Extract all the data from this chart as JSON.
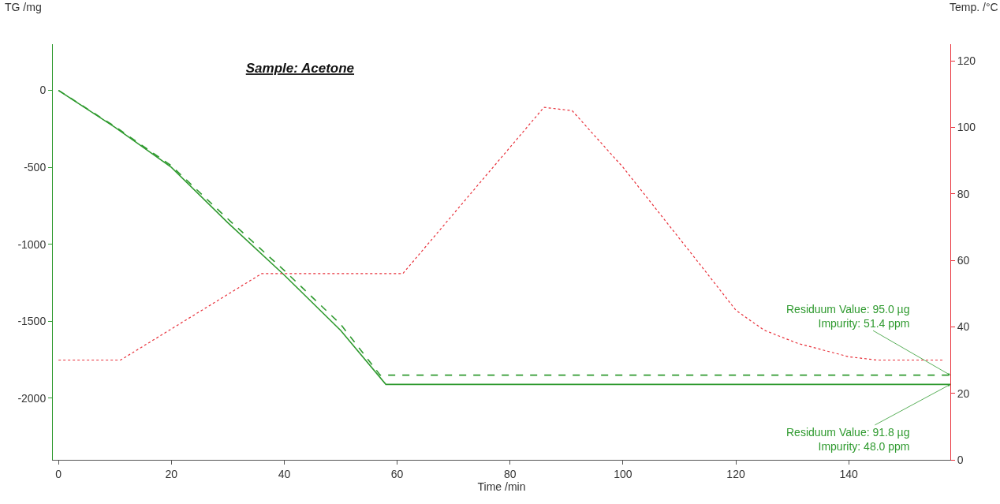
{
  "chart_data": {
    "type": "line",
    "title": "Sample: Acetone",
    "xlabel": "Time /min",
    "ylabel": "TG /mg",
    "y2label": "Temp. /°C",
    "series": [
      {
        "color": "#2f9a2f",
        "line_style": "solid",
        "x": [
          0,
          10,
          20,
          30,
          40,
          50,
          58,
          158
        ],
        "values": [
          0,
          -240,
          -500,
          -860,
          -1200,
          -1560,
          -1910,
          -1910
        ]
      },
      {
        "color": "#2f9a2f",
        "line_style": "dashed",
        "x": [
          0,
          10,
          20,
          30,
          40,
          50,
          57,
          158
        ],
        "values": [
          0,
          -235,
          -490,
          -835,
          -1170,
          -1520,
          -1850,
          -1850
        ]
      },
      {
        "color": "#e8303a",
        "line_style": "dotted",
        "axis": "y2",
        "x": [
          0,
          11,
          36,
          61,
          86,
          91,
          100,
          114,
          120,
          125,
          131,
          140,
          145,
          157
        ],
        "values": [
          30,
          30,
          56,
          56,
          106,
          105,
          88,
          58,
          45,
          39,
          35,
          31,
          30,
          30
        ]
      }
    ],
    "annotations": [
      {
        "text": "Residuum Value: 95.0 µg\nImpurity: 51.4 ppm",
        "x": 158,
        "y": -1850
      },
      {
        "text": "Residuum Value: 91.8 µg\nImpurity: 48.0 ppm",
        "x": 158,
        "y": -1910
      }
    ],
    "xlim": [
      -1,
      158
    ],
    "xticks": [
      0,
      20,
      40,
      60,
      80,
      100,
      120,
      140
    ],
    "ylim": [
      -2400,
      300
    ],
    "yticks": [
      -2000,
      -1500,
      -1000,
      -500,
      0
    ],
    "y2lim": [
      0,
      125
    ],
    "y2ticks": [
      0,
      20,
      40,
      60,
      80,
      100,
      120
    ],
    "marker": "none"
  }
}
